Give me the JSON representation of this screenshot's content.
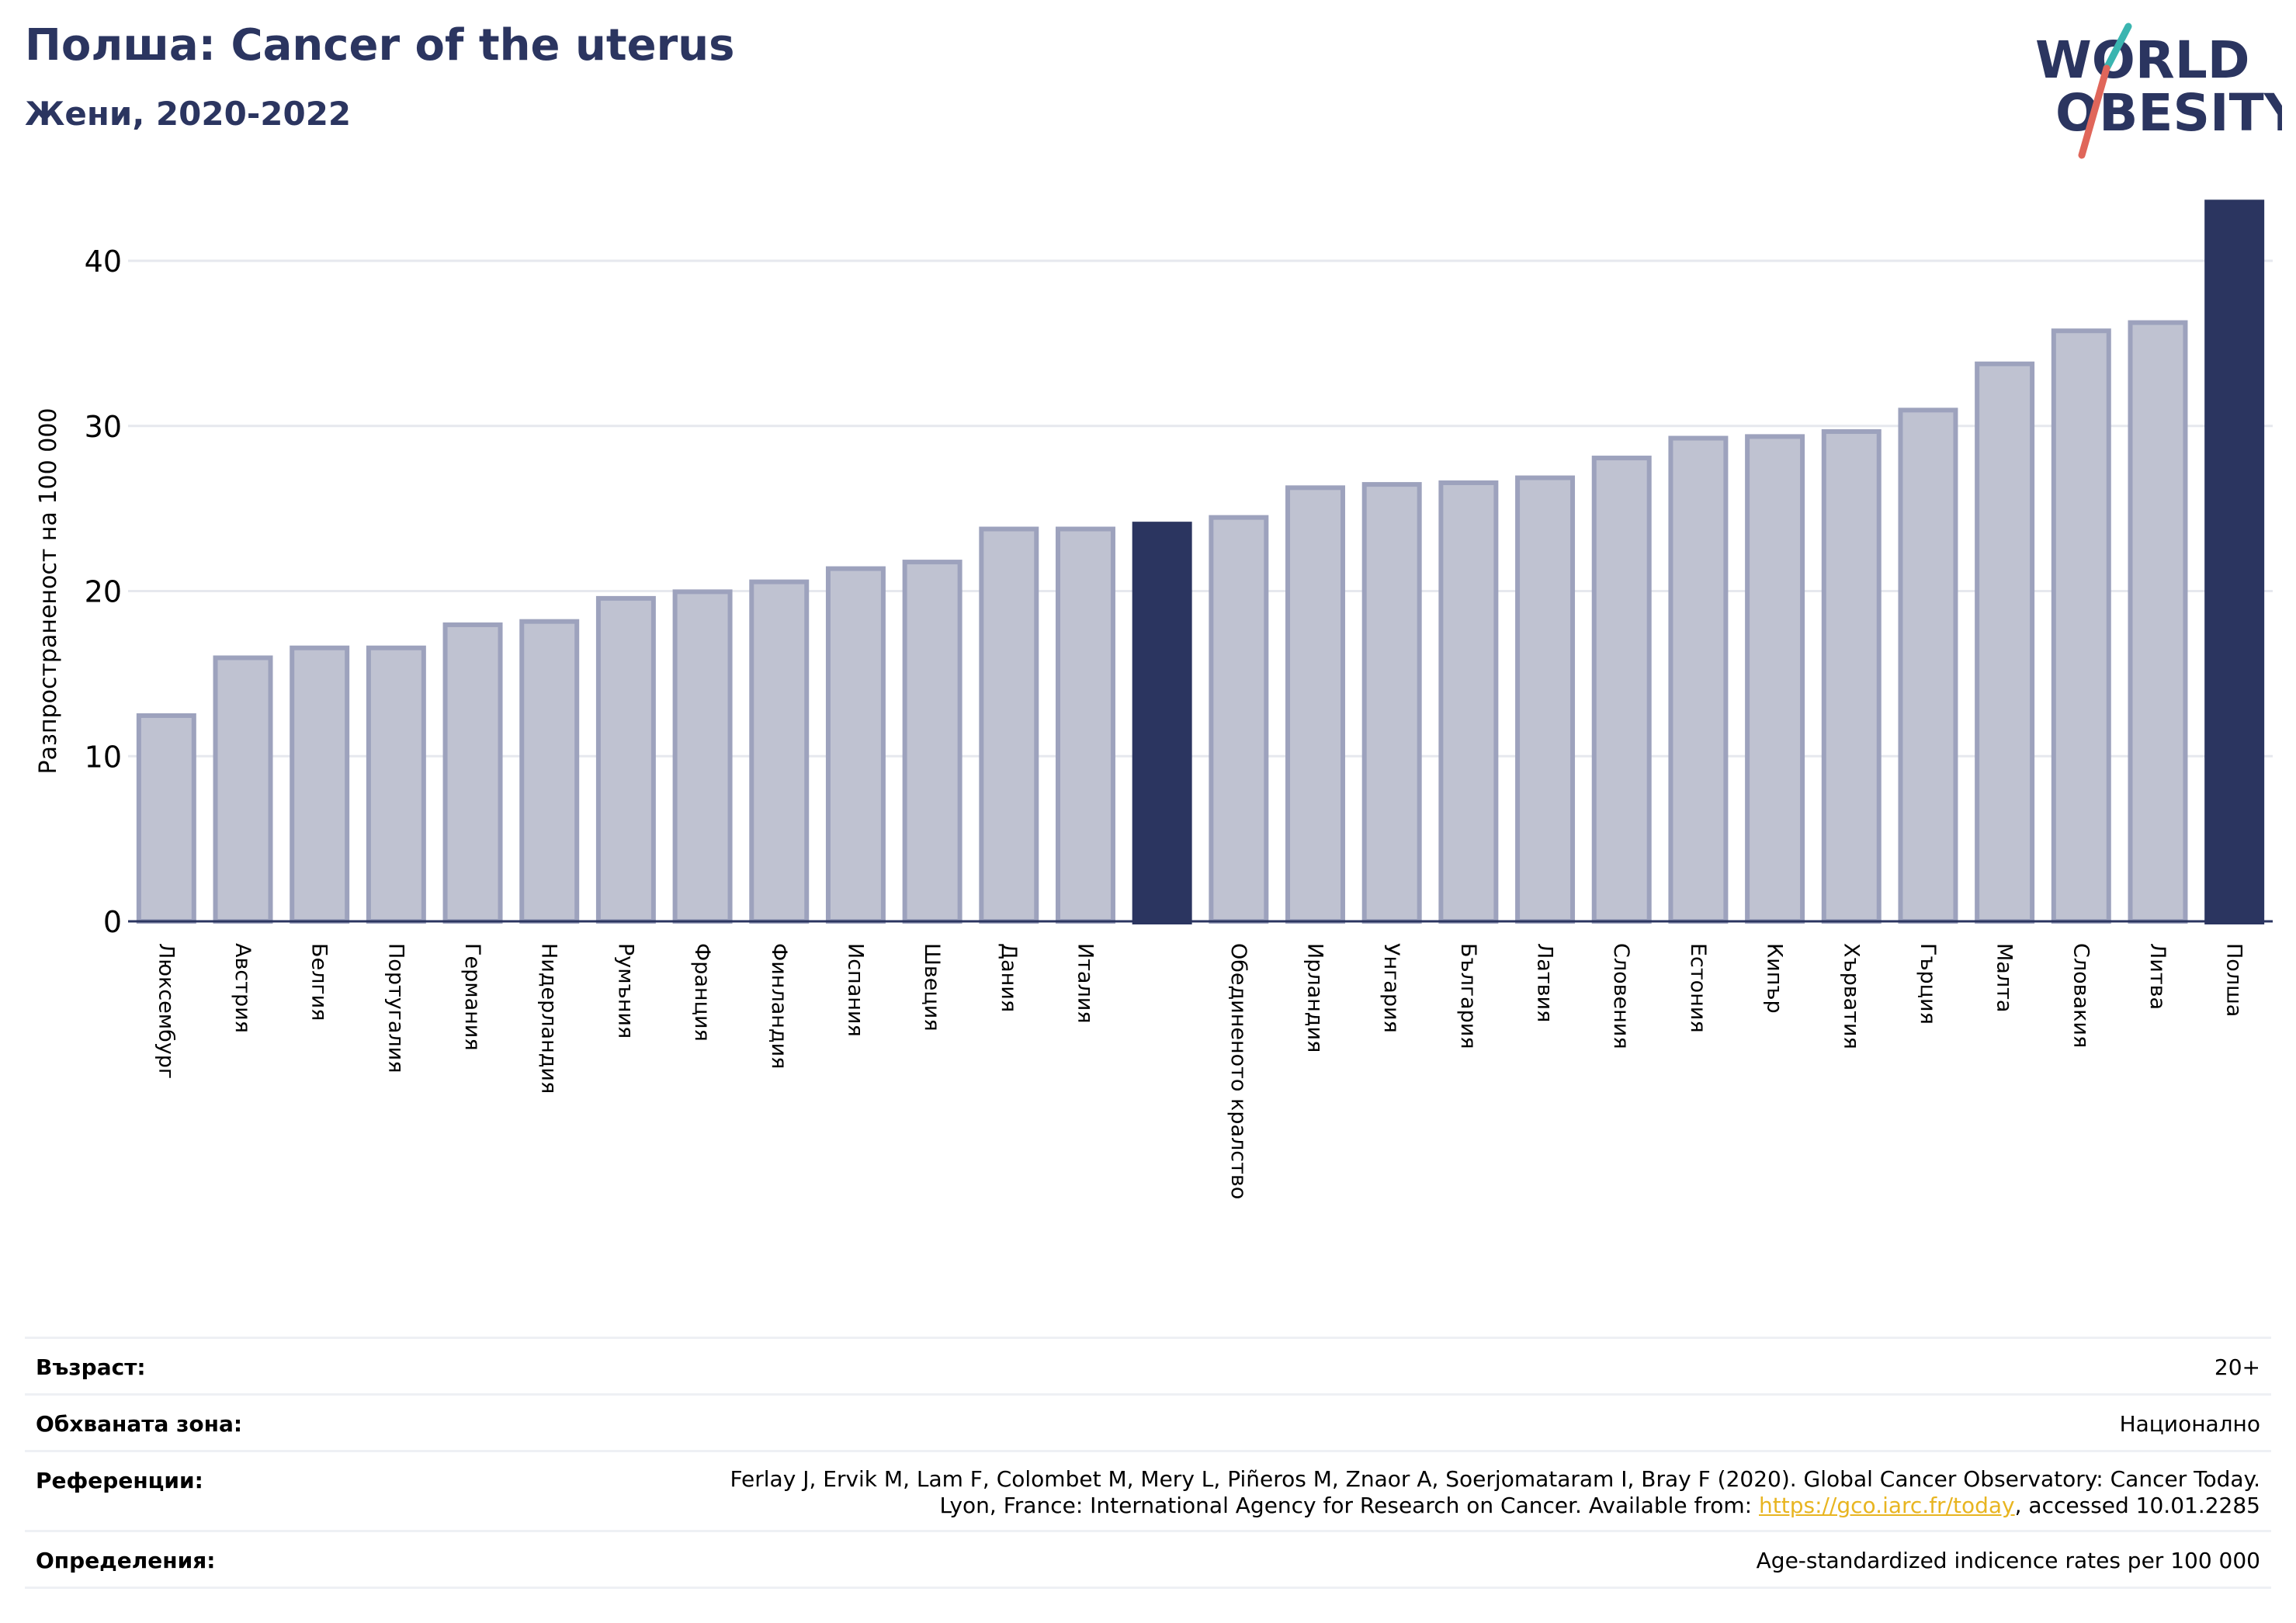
{
  "header": {
    "title": "Полша: Cancer of the uterus",
    "subtitle": "Жени, 2020-2022"
  },
  "logo": {
    "line1": "WORLD",
    "line2": "OBESITY",
    "colors": {
      "text": "#2b3560",
      "slash_teal": "#3ab5b0",
      "slash_red": "#e0665a"
    }
  },
  "chart_data": {
    "type": "bar",
    "ylabel": "Разпространеност  на 100 000",
    "ylim": [
      0,
      44
    ],
    "yticks": [
      0,
      10,
      20,
      30,
      40
    ],
    "grid": true,
    "categories": [
      "Люксембург",
      "Австрия",
      "Белгия",
      "Португалия",
      "Германия",
      "Нидерландия",
      "Румъния",
      "Франция",
      "Финландия",
      "Испания",
      "Швеция",
      "Дания",
      "Италия",
      "",
      "Обединеното кралство",
      "Ирландия",
      "Унгария",
      "България",
      "Латвия",
      "Словения",
      "Естония",
      "Кипър",
      "Хърватия",
      "Гърция",
      "Малта",
      "Словакия",
      "Литва",
      "Полша"
    ],
    "values": [
      12.6,
      16.1,
      16.7,
      16.7,
      18.1,
      18.3,
      19.7,
      20.1,
      20.7,
      21.5,
      21.9,
      23.9,
      23.9,
      24.2,
      24.6,
      26.4,
      26.6,
      26.7,
      27.0,
      28.2,
      29.4,
      29.5,
      29.8,
      31.1,
      33.9,
      35.9,
      36.4,
      43.7
    ],
    "highlight": [
      13,
      27
    ],
    "colors": {
      "bar": "#bfc2d1",
      "bar_edge": "#9da2bd",
      "highlight": "#2b3560",
      "grid": "#e6e8ee",
      "axis": "#2b3560"
    }
  },
  "meta": {
    "age_label": "Възраст:",
    "age_value": "20+",
    "area_label": "Обхваната зона:",
    "area_value": "Национално",
    "refs_label": "Референции:",
    "refs_line1": "Ferlay J, Ervik M, Lam F, Colombet M, Mery L, Piñeros M, Znaor A, Soerjomataram I, Bray F (2020). Global Cancer Observatory: Cancer Today.",
    "refs_line2_pre": "Lyon, France: International Agency for Research on Cancer. Available from: ",
    "refs_link": "https://gco.iarc.fr/today",
    "refs_line2_post": ", accessed 10.01.2285",
    "defs_label": "Определения:",
    "defs_value": "Age-standardized indicence rates per 100 000"
  }
}
